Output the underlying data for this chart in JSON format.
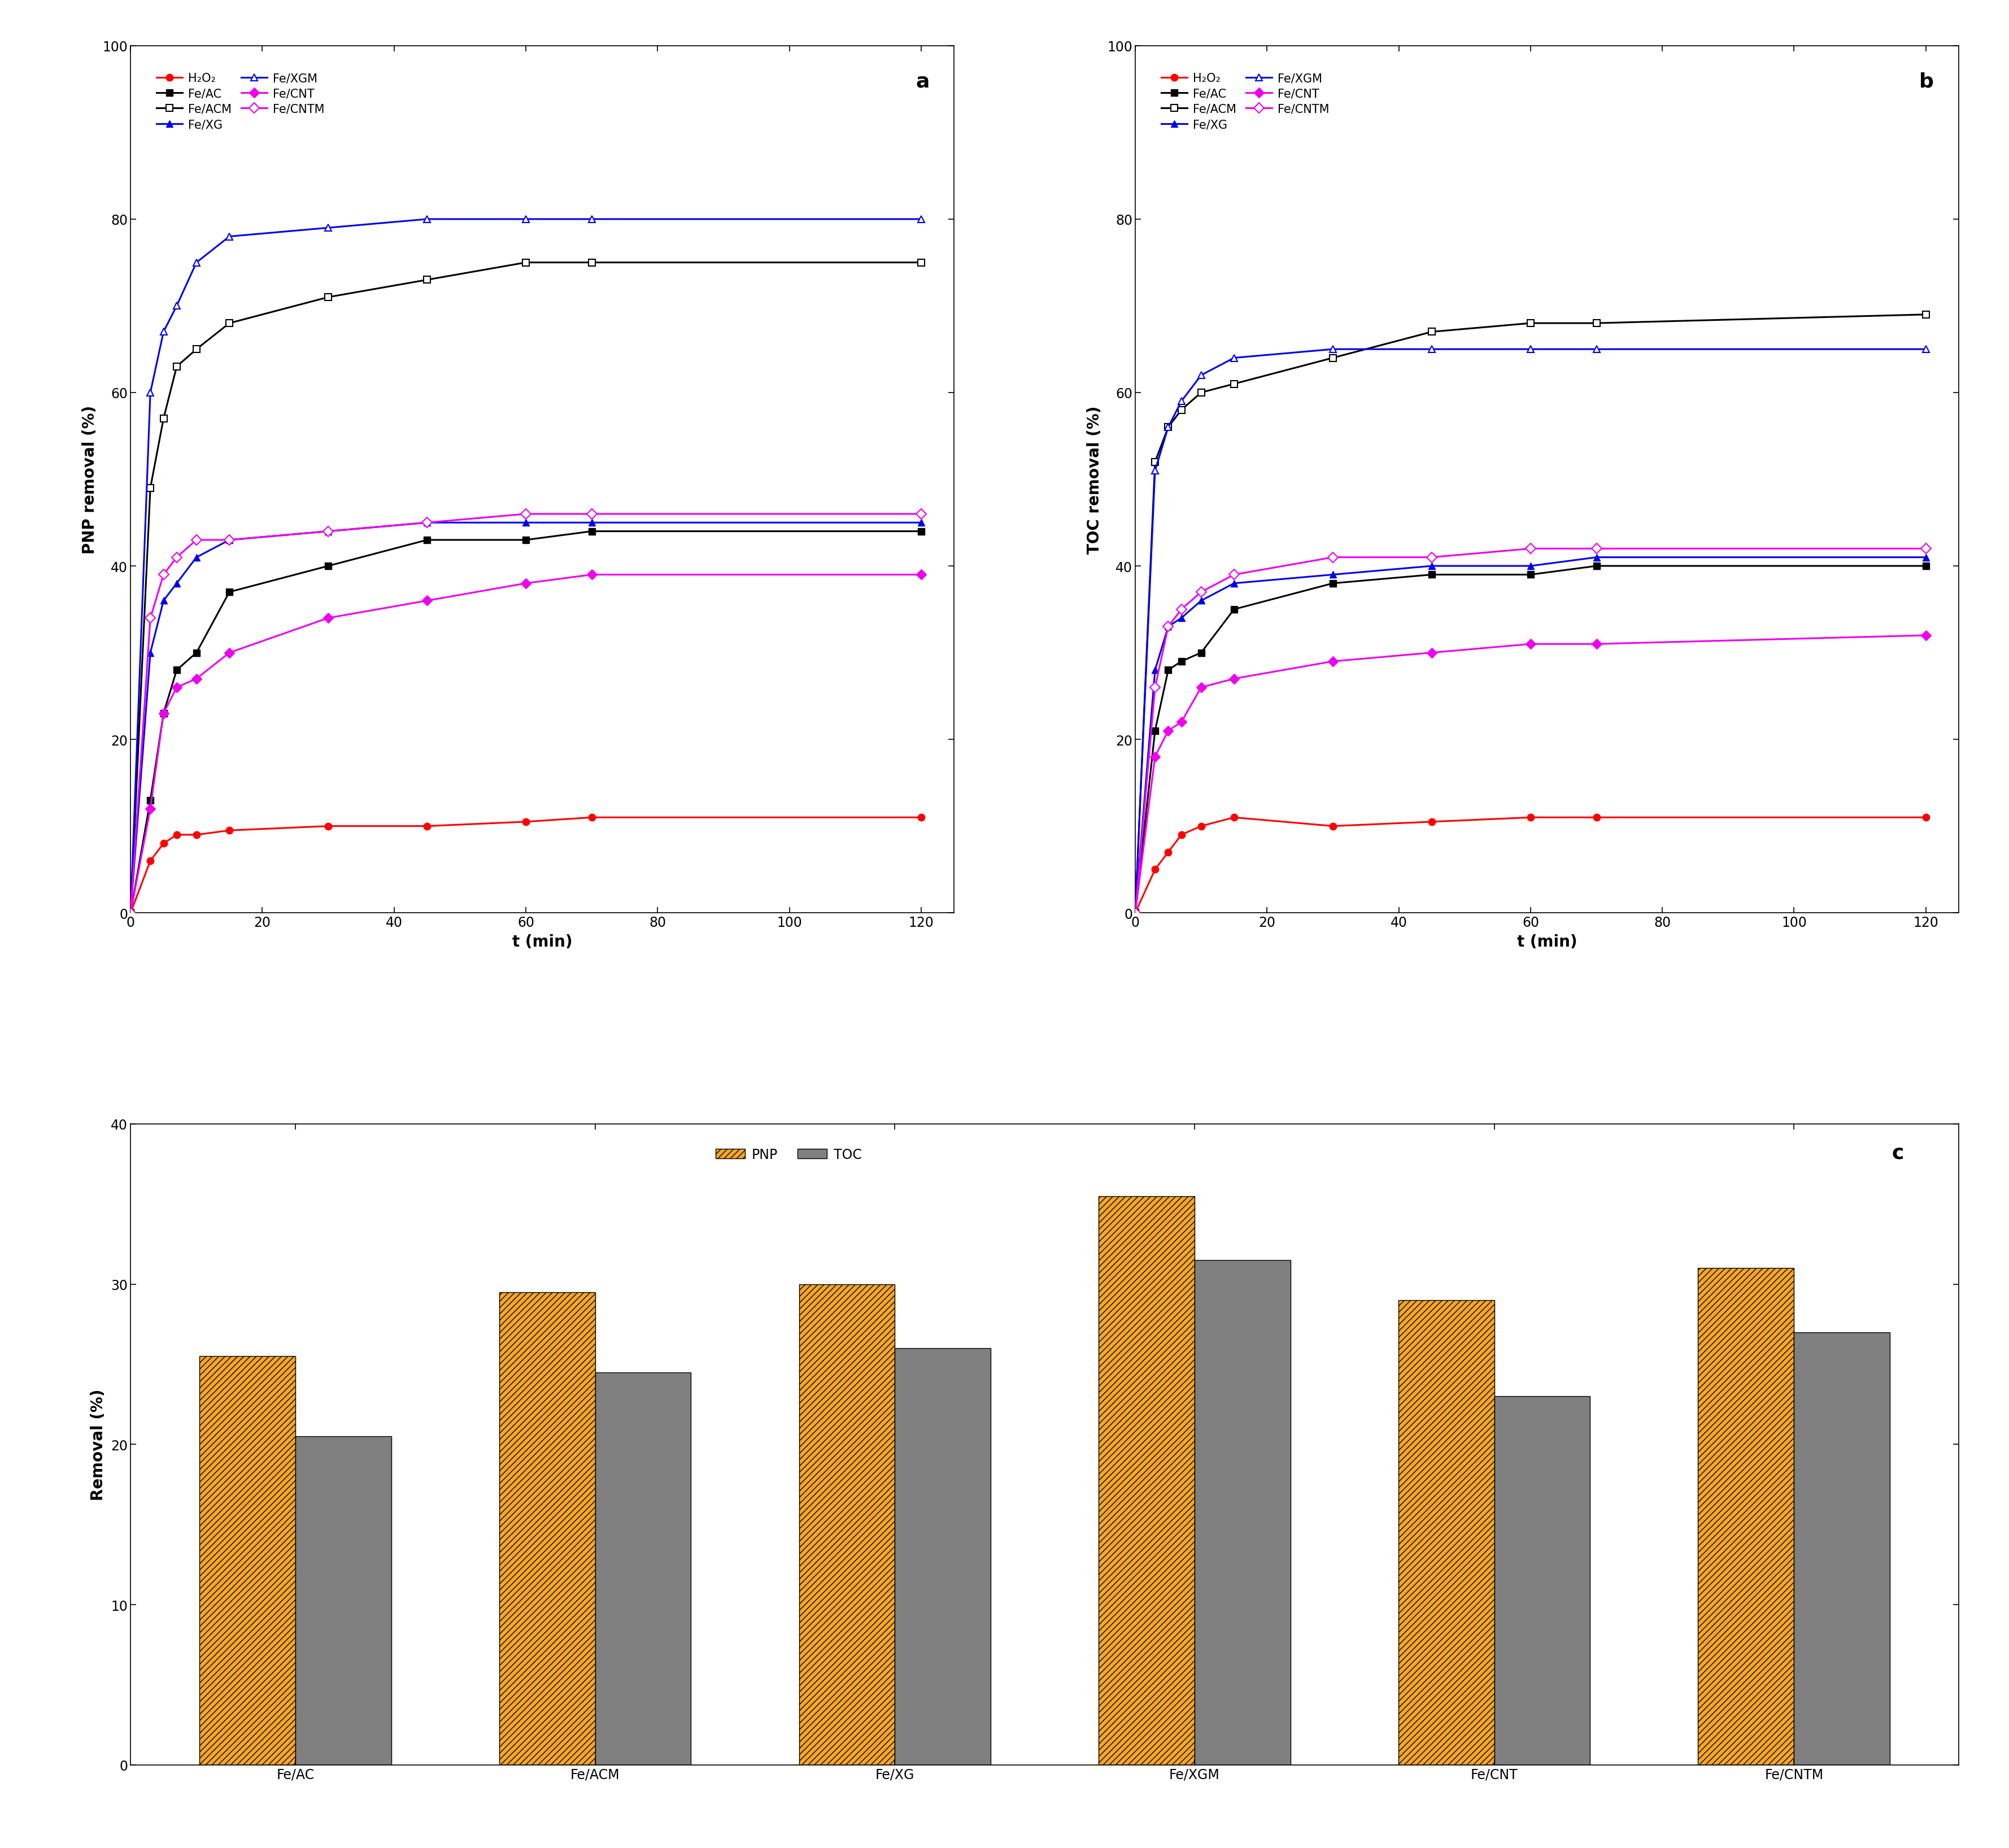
{
  "time_points": [
    0,
    3,
    5,
    7,
    10,
    15,
    30,
    45,
    60,
    70,
    120
  ],
  "pnp_H2O2": [
    0,
    6,
    8,
    9,
    9,
    9.5,
    10,
    10,
    10.5,
    11,
    11
  ],
  "pnp_FeAC": [
    0,
    13,
    23,
    28,
    30,
    37,
    40,
    43,
    43,
    44,
    44
  ],
  "pnp_FeACM": [
    0,
    49,
    57,
    63,
    65,
    68,
    71,
    73,
    75,
    75,
    75
  ],
  "pnp_FeXG": [
    0,
    30,
    36,
    38,
    41,
    43,
    44,
    45,
    45,
    45,
    45
  ],
  "pnp_FeXGM": [
    0,
    60,
    67,
    70,
    75,
    78,
    79,
    80,
    80,
    80,
    80
  ],
  "pnp_FeCNT": [
    0,
    12,
    23,
    26,
    27,
    30,
    34,
    36,
    38,
    39,
    39
  ],
  "pnp_FeCNTM": [
    0,
    34,
    39,
    41,
    43,
    43,
    44,
    45,
    46,
    46,
    46
  ],
  "toc_H2O2": [
    0,
    5,
    7,
    9,
    10,
    11,
    10,
    10.5,
    11,
    11,
    11
  ],
  "toc_FeAC": [
    0,
    21,
    28,
    29,
    30,
    35,
    38,
    39,
    39,
    40,
    40
  ],
  "toc_FeACM": [
    0,
    52,
    56,
    58,
    60,
    61,
    64,
    67,
    68,
    68,
    69
  ],
  "toc_FeXG": [
    0,
    28,
    33,
    34,
    36,
    38,
    39,
    40,
    40,
    41,
    41
  ],
  "toc_FeXGM": [
    0,
    51,
    56,
    59,
    62,
    64,
    65,
    65,
    65,
    65,
    65
  ],
  "toc_FeCNT": [
    0,
    18,
    21,
    22,
    26,
    27,
    29,
    30,
    31,
    31,
    32
  ],
  "toc_FeCNTM": [
    0,
    26,
    33,
    35,
    37,
    39,
    41,
    41,
    42,
    42,
    42
  ],
  "bar_categories": [
    "Fe/AC",
    "Fe/ACM",
    "Fe/XG",
    "Fe/XGM",
    "Fe/CNT",
    "Fe/CNTM"
  ],
  "bar_pnp": [
    25.5,
    29.5,
    30.0,
    35.5,
    29.0,
    31.0
  ],
  "bar_toc": [
    20.5,
    24.5,
    26.0,
    31.5,
    23.0,
    27.0
  ],
  "pnp_ylabel": "PNP removal (%)",
  "toc_ylabel": "TOC removal (%)",
  "bar_ylabel": "Removal (%)",
  "xlabel": "t (min)",
  "color_H2O2": "#FF0000",
  "color_FeAC": "#000000",
  "color_FeACM": "#000000",
  "color_FeXG": "#0000EE",
  "color_FeXGM": "#0000EE",
  "color_FeCNT": "#EE00EE",
  "color_FeCNTM": "#EE00EE",
  "bar_pnp_facecolor": "#F5A623",
  "bar_toc_facecolor": "#808080",
  "label_H2O2": "H₂O₂",
  "label_FeAC": "Fe/AC",
  "label_FeACM": "Fe/ACM",
  "label_FeXG": "Fe/XG",
  "label_FeXGM": "Fe/XGM",
  "label_FeCNT": "Fe/CNT",
  "label_FeCNTM": "Fe/CNTM"
}
